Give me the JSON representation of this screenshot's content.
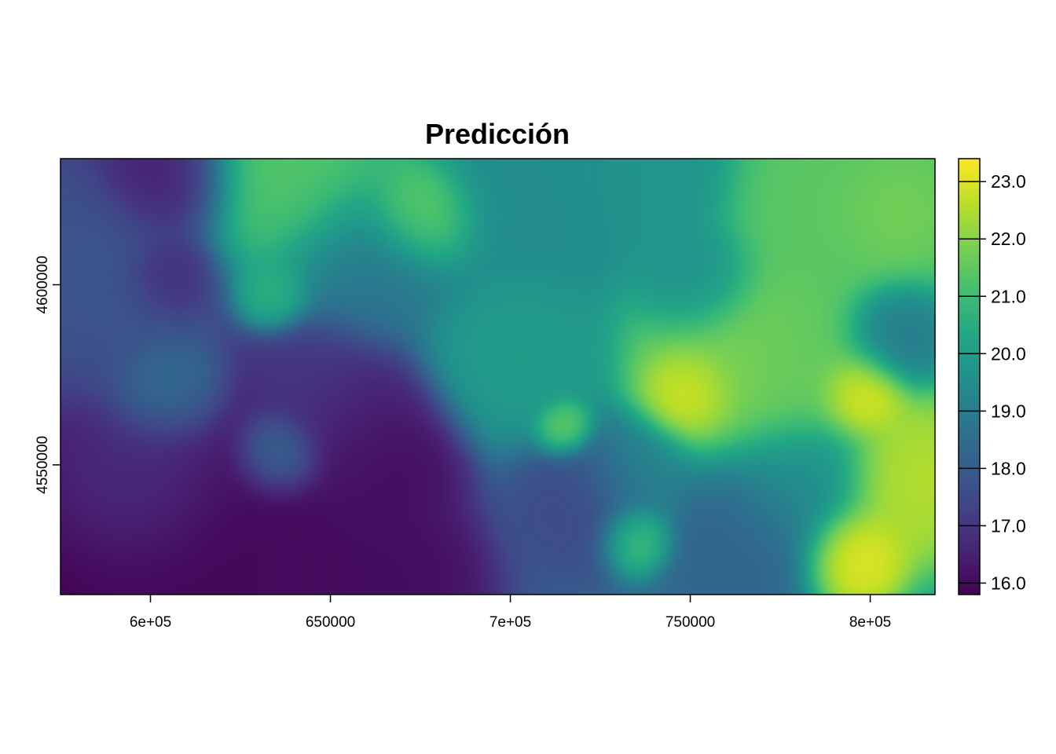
{
  "chart_data": {
    "type": "heatmap",
    "title": "Predicción",
    "xlabel": "",
    "ylabel": "",
    "xlim": [
      575000,
      818000
    ],
    "ylim": [
      4514000,
      4635000
    ],
    "x_ticks": [
      {
        "value": 600000,
        "label": "6e+05"
      },
      {
        "value": 650000,
        "label": "650000"
      },
      {
        "value": 700000,
        "label": "7e+05"
      },
      {
        "value": 750000,
        "label": "750000"
      },
      {
        "value": 800000,
        "label": "8e+05"
      }
    ],
    "y_ticks": [
      {
        "value": 4550000,
        "label": "4550000"
      },
      {
        "value": 4600000,
        "label": "4600000"
      }
    ],
    "colorbar": {
      "range": [
        15.8,
        23.4
      ],
      "palette": "viridis",
      "ticks": [
        {
          "value": 16.0,
          "label": "16.0"
        },
        {
          "value": 17.0,
          "label": "17.0"
        },
        {
          "value": 18.0,
          "label": "18.0"
        },
        {
          "value": 19.0,
          "label": "19.0"
        },
        {
          "value": 20.0,
          "label": "20.0"
        },
        {
          "value": 21.0,
          "label": "21.0"
        },
        {
          "value": 22.0,
          "label": "22.0"
        },
        {
          "value": 23.0,
          "label": "23.0"
        }
      ]
    },
    "surface": {
      "base": 18.3,
      "trend_x": 1.8e-05,
      "trend_y": 1e-05,
      "ref_x": 680000,
      "ref_y": 4580000,
      "anchors": [
        {
          "x": 605000,
          "y": 4630000,
          "v": 16.4,
          "r": 9000
        },
        {
          "x": 605000,
          "y": 4603000,
          "v": 16.6,
          "r": 6000
        },
        {
          "x": 585000,
          "y": 4600000,
          "v": 17.8,
          "r": 15000
        },
        {
          "x": 640000,
          "y": 4630000,
          "v": 21.5,
          "r": 14000
        },
        {
          "x": 605000,
          "y": 4570000,
          "v": 18.7,
          "r": 8000
        },
        {
          "x": 600000,
          "y": 4545000,
          "v": 17.0,
          "r": 12000
        },
        {
          "x": 615000,
          "y": 4530000,
          "v": 15.9,
          "r": 20000
        },
        {
          "x": 640000,
          "y": 4518000,
          "v": 16.0,
          "r": 12000
        },
        {
          "x": 645000,
          "y": 4575000,
          "v": 17.0,
          "r": 9000
        },
        {
          "x": 635000,
          "y": 4553000,
          "v": 18.7,
          "r": 6000
        },
        {
          "x": 635000,
          "y": 4597000,
          "v": 20.8,
          "r": 5000
        },
        {
          "x": 667000,
          "y": 4552000,
          "v": 16.0,
          "r": 10000
        },
        {
          "x": 658000,
          "y": 4565000,
          "v": 16.5,
          "r": 10000
        },
        {
          "x": 668000,
          "y": 4518000,
          "v": 16.0,
          "r": 12000
        },
        {
          "x": 675000,
          "y": 4620000,
          "v": 22.0,
          "r": 8000
        },
        {
          "x": 660000,
          "y": 4605000,
          "v": 18.8,
          "r": 12000
        },
        {
          "x": 700000,
          "y": 4580000,
          "v": 20.0,
          "r": 12000
        },
        {
          "x": 720000,
          "y": 4540000,
          "v": 17.5,
          "r": 10000
        },
        {
          "x": 715000,
          "y": 4560000,
          "v": 22.0,
          "r": 4000
        },
        {
          "x": 705000,
          "y": 4630000,
          "v": 19.5,
          "r": 15000
        },
        {
          "x": 740000,
          "y": 4630000,
          "v": 19.7,
          "r": 10000
        },
        {
          "x": 752000,
          "y": 4600000,
          "v": 19.4,
          "r": 8000
        },
        {
          "x": 750000,
          "y": 4570000,
          "v": 23.3,
          "r": 6500
        },
        {
          "x": 762000,
          "y": 4578000,
          "v": 22.0,
          "r": 14000
        },
        {
          "x": 735000,
          "y": 4530000,
          "v": 21.5,
          "r": 5000
        },
        {
          "x": 735000,
          "y": 4548000,
          "v": 19.2,
          "r": 8000
        },
        {
          "x": 765000,
          "y": 4530000,
          "v": 18.2,
          "r": 12000
        },
        {
          "x": 780000,
          "y": 4545000,
          "v": 19.6,
          "r": 10000
        },
        {
          "x": 790000,
          "y": 4620000,
          "v": 21.5,
          "r": 14000
        },
        {
          "x": 805000,
          "y": 4620000,
          "v": 21.9,
          "r": 7000
        },
        {
          "x": 806000,
          "y": 4586000,
          "v": 18.8,
          "r": 7000
        },
        {
          "x": 797000,
          "y": 4570000,
          "v": 23.3,
          "r": 6000
        },
        {
          "x": 812000,
          "y": 4545000,
          "v": 22.6,
          "r": 10000
        },
        {
          "x": 795000,
          "y": 4525000,
          "v": 23.3,
          "r": 7000
        },
        {
          "x": 780000,
          "y": 4580000,
          "v": 21.5,
          "r": 12000
        }
      ]
    }
  }
}
